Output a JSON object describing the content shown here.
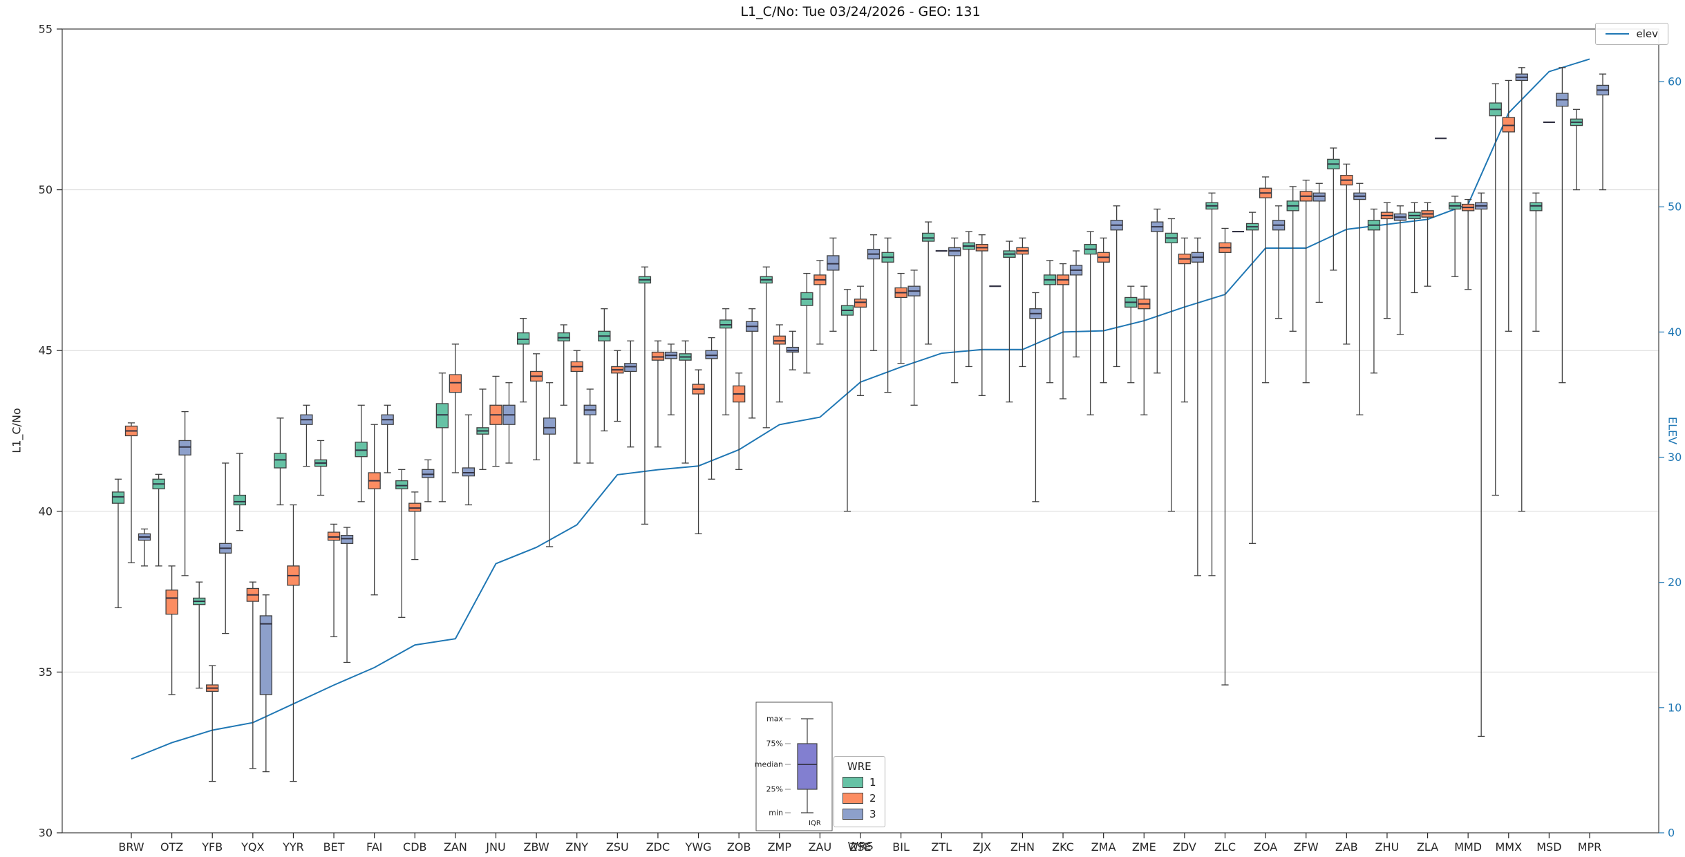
{
  "figure": {
    "title": "L1_C/No: Tue 03/24/2026 - GEO: 131",
    "xlabel": "WRS",
    "ylabel_left": "L1_C/No",
    "ylabel_right": "ELEV",
    "legend_elev_label": "elev",
    "legend_wre_title": "WRE",
    "anatomy_labels": [
      "max",
      "75%",
      "median",
      "25%",
      "min",
      "IQR"
    ]
  },
  "chart_data": {
    "type": "boxplot+line",
    "title": "L1_C/No: Tue 03/24/2026 - GEO: 131",
    "xlabel": "WRS",
    "ylabel": "L1_C/No",
    "ylabel_right": "ELEV",
    "grid": true,
    "y_left": {
      "min": 30,
      "max": 55,
      "ticks": [
        30,
        35,
        40,
        45,
        50,
        55
      ]
    },
    "y_right": {
      "min": 0,
      "max": 64.2,
      "ticks": [
        0,
        10,
        20,
        30,
        40,
        50,
        60
      ]
    },
    "groups": [
      {
        "name": "1",
        "color": "#66c2a5"
      },
      {
        "name": "2",
        "color": "#fc8d62"
      },
      {
        "name": "3",
        "color": "#8da0cb"
      }
    ],
    "box_value_order": [
      "whisker_low",
      "q1",
      "median",
      "q3",
      "whisker_high"
    ],
    "categories": [
      "BRW",
      "OTZ",
      "YFB",
      "YQX",
      "YYR",
      "BET",
      "FAI",
      "CDB",
      "ZAN",
      "JNU",
      "ZBW",
      "ZNY",
      "ZSU",
      "ZDC",
      "YWG",
      "ZOB",
      "ZMP",
      "ZAU",
      "ZSE",
      "BIL",
      "ZTL",
      "ZJX",
      "ZHN",
      "ZKC",
      "ZMA",
      "ZME",
      "ZDV",
      "ZLC",
      "ZOA",
      "ZFW",
      "ZAB",
      "ZHU",
      "ZLA",
      "MMD",
      "MMX",
      "MSD",
      "MPR"
    ],
    "stations": [
      {
        "name": "BRW",
        "elev": 5.9,
        "wre": [
          [
            37.0,
            40.25,
            40.45,
            40.6,
            41.0
          ],
          [
            38.4,
            42.35,
            42.5,
            42.65,
            42.75
          ],
          [
            38.3,
            39.1,
            39.2,
            39.3,
            39.45
          ]
        ]
      },
      {
        "name": "OTZ",
        "elev": 7.2,
        "wre": [
          [
            38.3,
            40.7,
            40.85,
            41.0,
            41.15
          ],
          [
            34.3,
            36.8,
            37.3,
            37.55,
            38.3
          ],
          [
            38.0,
            41.75,
            42.0,
            42.2,
            43.1
          ]
        ]
      },
      {
        "name": "YFB",
        "elev": 8.2,
        "wre": [
          [
            34.5,
            37.1,
            37.2,
            37.3,
            37.8
          ],
          [
            31.6,
            34.4,
            34.5,
            34.6,
            35.2
          ],
          [
            36.2,
            38.7,
            38.85,
            39.0,
            41.5
          ]
        ]
      },
      {
        "name": "YQX",
        "elev": 8.8,
        "wre": [
          [
            39.4,
            40.2,
            40.3,
            40.5,
            41.8
          ],
          [
            32.0,
            37.2,
            37.4,
            37.6,
            37.8
          ],
          [
            31.9,
            34.3,
            36.5,
            36.75,
            37.4
          ]
        ]
      },
      {
        "name": "YYR",
        "elev": 10.3,
        "wre": [
          [
            40.2,
            41.35,
            41.6,
            41.8,
            42.9
          ],
          [
            31.6,
            37.7,
            38.0,
            38.3,
            40.2
          ],
          [
            41.4,
            42.7,
            42.85,
            43.0,
            43.3
          ]
        ]
      },
      {
        "name": "BET",
        "elev": 11.8,
        "wre": [
          [
            40.5,
            41.4,
            41.5,
            41.6,
            42.2
          ],
          [
            36.1,
            39.1,
            39.2,
            39.35,
            39.6
          ],
          [
            35.3,
            39.0,
            39.15,
            39.25,
            39.5
          ]
        ]
      },
      {
        "name": "FAI",
        "elev": 13.2,
        "wre": [
          [
            40.3,
            41.7,
            41.9,
            42.15,
            43.3
          ],
          [
            37.4,
            40.7,
            40.95,
            41.2,
            42.7
          ],
          [
            41.2,
            42.7,
            42.85,
            43.0,
            43.3
          ]
        ]
      },
      {
        "name": "CDB",
        "elev": 15.0,
        "wre": [
          [
            36.7,
            40.7,
            40.8,
            40.95,
            41.3
          ],
          [
            38.5,
            40.0,
            40.1,
            40.25,
            40.6
          ],
          [
            40.3,
            41.05,
            41.15,
            41.3,
            41.6
          ]
        ]
      },
      {
        "name": "ZAN",
        "elev": 15.5,
        "wre": [
          [
            40.3,
            42.6,
            43.0,
            43.35,
            44.3
          ],
          [
            41.2,
            43.7,
            44.0,
            44.25,
            45.2
          ],
          [
            40.2,
            41.1,
            41.2,
            41.35,
            43.0
          ]
        ]
      },
      {
        "name": "JNU",
        "elev": 21.5,
        "wre": [
          [
            41.3,
            42.4,
            42.5,
            42.6,
            43.8
          ],
          [
            41.4,
            42.7,
            43.0,
            43.3,
            44.2
          ],
          [
            41.5,
            42.7,
            43.0,
            43.3,
            44.0
          ]
        ]
      },
      {
        "name": "ZBW",
        "elev": 22.8,
        "wre": [
          [
            43.4,
            45.2,
            45.35,
            45.55,
            46.0
          ],
          [
            41.6,
            44.05,
            44.2,
            44.35,
            44.9
          ],
          [
            38.9,
            42.4,
            42.6,
            42.9,
            44.0
          ]
        ]
      },
      {
        "name": "ZNY",
        "elev": 24.6,
        "wre": [
          [
            43.3,
            45.3,
            45.4,
            45.55,
            45.8
          ],
          [
            41.5,
            44.35,
            44.5,
            44.65,
            45.0
          ],
          [
            41.5,
            43.0,
            43.15,
            43.3,
            43.8
          ]
        ]
      },
      {
        "name": "ZSU",
        "elev": 28.6,
        "wre": [
          [
            42.5,
            45.3,
            45.45,
            45.6,
            46.3
          ],
          [
            42.8,
            44.3,
            44.4,
            44.5,
            45.0
          ],
          [
            42.0,
            44.35,
            44.5,
            44.6,
            45.3
          ]
        ]
      },
      {
        "name": "ZDC",
        "elev": 29.0,
        "wre": [
          [
            39.6,
            47.1,
            47.2,
            47.3,
            47.6
          ],
          [
            42.0,
            44.7,
            44.8,
            44.95,
            45.3
          ],
          [
            43.0,
            44.75,
            44.85,
            44.95,
            45.2
          ]
        ]
      },
      {
        "name": "YWG",
        "elev": 29.3,
        "wre": [
          [
            41.5,
            44.7,
            44.8,
            44.9,
            45.3
          ],
          [
            39.3,
            43.65,
            43.8,
            43.95,
            44.4
          ],
          [
            41.0,
            44.75,
            44.85,
            45.0,
            45.4
          ]
        ]
      },
      {
        "name": "ZOB",
        "elev": 30.6,
        "wre": [
          [
            43.0,
            45.7,
            45.8,
            45.95,
            46.3
          ],
          [
            41.3,
            43.4,
            43.65,
            43.9,
            44.3
          ],
          [
            42.9,
            45.6,
            45.75,
            45.9,
            46.3
          ]
        ]
      },
      {
        "name": "ZMP",
        "elev": 32.6,
        "wre": [
          [
            42.6,
            47.1,
            47.2,
            47.3,
            47.6
          ],
          [
            43.4,
            45.2,
            45.3,
            45.45,
            45.8
          ],
          [
            44.4,
            44.95,
            45.0,
            45.1,
            45.6
          ]
        ]
      },
      {
        "name": "ZAU",
        "elev": 33.2,
        "wre": [
          [
            44.3,
            46.4,
            46.6,
            46.8,
            47.4
          ],
          [
            45.2,
            47.05,
            47.2,
            47.35,
            47.8
          ],
          [
            45.6,
            47.5,
            47.7,
            47.95,
            48.5
          ]
        ]
      },
      {
        "name": "ZSE",
        "elev": 36.0,
        "wre": [
          [
            40.0,
            46.1,
            46.25,
            46.4,
            46.9
          ],
          [
            43.6,
            46.35,
            46.5,
            46.6,
            47.0
          ],
          [
            45.0,
            47.85,
            48.0,
            48.15,
            48.6
          ]
        ]
      },
      {
        "name": "BIL",
        "elev": 37.2,
        "wre": [
          [
            43.7,
            47.75,
            47.9,
            48.05,
            48.5
          ],
          [
            44.6,
            46.65,
            46.8,
            46.95,
            47.4
          ],
          [
            43.3,
            46.7,
            46.85,
            47.0,
            47.5
          ]
        ]
      },
      {
        "name": "ZTL",
        "elev": 38.3,
        "wre": [
          [
            45.2,
            48.4,
            48.5,
            48.65,
            49.0
          ],
          [
            48.1,
            48.1,
            48.1,
            48.1,
            48.1
          ],
          [
            44.0,
            47.95,
            48.1,
            48.2,
            48.5
          ]
        ]
      },
      {
        "name": "ZJX",
        "elev": 38.6,
        "wre": [
          [
            44.5,
            48.15,
            48.25,
            48.35,
            48.7
          ],
          [
            43.6,
            48.1,
            48.2,
            48.3,
            48.6
          ],
          [
            47.0,
            47.0,
            47.0,
            47.0,
            47.0
          ]
        ]
      },
      {
        "name": "ZHN",
        "elev": 38.6,
        "wre": [
          [
            43.4,
            47.9,
            48.0,
            48.1,
            48.4
          ],
          [
            44.5,
            48.0,
            48.1,
            48.2,
            48.5
          ],
          [
            40.3,
            46.0,
            46.15,
            46.3,
            46.8
          ]
        ]
      },
      {
        "name": "ZKC",
        "elev": 40.0,
        "wre": [
          [
            44.0,
            47.05,
            47.2,
            47.35,
            47.8
          ],
          [
            43.5,
            47.05,
            47.2,
            47.35,
            47.7
          ],
          [
            44.8,
            47.35,
            47.5,
            47.65,
            48.1
          ]
        ]
      },
      {
        "name": "ZMA",
        "elev": 40.1,
        "wre": [
          [
            43.0,
            48.0,
            48.15,
            48.3,
            48.7
          ],
          [
            44.0,
            47.75,
            47.9,
            48.05,
            48.5
          ],
          [
            44.5,
            48.75,
            48.9,
            49.05,
            49.5
          ]
        ]
      },
      {
        "name": "ZME",
        "elev": 40.9,
        "wre": [
          [
            44.0,
            46.35,
            46.5,
            46.65,
            47.0
          ],
          [
            43.0,
            46.3,
            46.45,
            46.6,
            47.0
          ],
          [
            44.3,
            48.7,
            48.85,
            49.0,
            49.4
          ]
        ]
      },
      {
        "name": "ZDV",
        "elev": 42.0,
        "wre": [
          [
            40.0,
            48.35,
            48.5,
            48.65,
            49.1
          ],
          [
            43.4,
            47.7,
            47.85,
            48.0,
            48.5
          ],
          [
            38.0,
            47.75,
            47.9,
            48.05,
            48.5
          ]
        ]
      },
      {
        "name": "ZLC",
        "elev": 43.0,
        "wre": [
          [
            38.0,
            49.4,
            49.5,
            49.6,
            49.9
          ],
          [
            34.6,
            48.05,
            48.2,
            48.35,
            48.8
          ],
          [
            48.7,
            48.7,
            48.7,
            48.7,
            48.7
          ]
        ]
      },
      {
        "name": "ZOA",
        "elev": 46.7,
        "wre": [
          [
            39.0,
            48.75,
            48.85,
            48.95,
            49.3
          ],
          [
            44.0,
            49.75,
            49.9,
            50.05,
            50.4
          ],
          [
            46.0,
            48.75,
            48.9,
            49.05,
            49.5
          ]
        ]
      },
      {
        "name": "ZFW",
        "elev": 46.7,
        "wre": [
          [
            45.6,
            49.35,
            49.5,
            49.65,
            50.1
          ],
          [
            44.0,
            49.65,
            49.8,
            49.95,
            50.3
          ],
          [
            46.5,
            49.65,
            49.8,
            49.9,
            50.2
          ]
        ]
      },
      {
        "name": "ZAB",
        "elev": 48.2,
        "wre": [
          [
            47.5,
            50.65,
            50.8,
            50.95,
            51.3
          ],
          [
            45.2,
            50.15,
            50.3,
            50.45,
            50.8
          ],
          [
            43.0,
            49.7,
            49.8,
            49.9,
            50.2
          ]
        ]
      },
      {
        "name": "ZHU",
        "elev": 48.6,
        "wre": [
          [
            44.3,
            48.75,
            48.9,
            49.05,
            49.4
          ],
          [
            46.0,
            49.1,
            49.2,
            49.3,
            49.6
          ],
          [
            45.5,
            49.05,
            49.15,
            49.25,
            49.5
          ]
        ]
      },
      {
        "name": "ZLA",
        "elev": 49.0,
        "wre": [
          [
            46.8,
            49.1,
            49.2,
            49.3,
            49.6
          ],
          [
            47.0,
            49.15,
            49.25,
            49.35,
            49.6
          ],
          [
            51.6,
            51.6,
            51.6,
            51.6,
            51.6
          ]
        ]
      },
      {
        "name": "MMD",
        "elev": 50.2,
        "wre": [
          [
            47.3,
            49.4,
            49.5,
            49.6,
            49.8
          ],
          [
            46.9,
            49.35,
            49.45,
            49.55,
            49.7
          ],
          [
            33.0,
            49.4,
            49.5,
            49.6,
            49.9
          ]
        ]
      },
      {
        "name": "MMX",
        "elev": 57.5,
        "wre": [
          [
            40.5,
            52.3,
            52.5,
            52.7,
            53.3
          ],
          [
            45.6,
            51.8,
            52.0,
            52.25,
            53.4
          ],
          [
            40.0,
            53.4,
            53.5,
            53.6,
            53.8
          ]
        ]
      },
      {
        "name": "MSD",
        "elev": 60.8,
        "wre": [
          [
            45.6,
            49.35,
            49.5,
            49.6,
            49.9
          ],
          [
            52.1,
            52.1,
            52.1,
            52.1,
            52.1
          ],
          [
            44.0,
            52.6,
            52.8,
            53.0,
            53.8
          ]
        ]
      },
      {
        "name": "MPR",
        "elev": 61.8,
        "wre": [
          [
            50.0,
            52.0,
            52.1,
            52.2,
            52.5
          ],
          null,
          [
            50.0,
            52.95,
            53.1,
            53.25,
            53.6
          ]
        ]
      }
    ],
    "elev_series": {
      "name": "elev",
      "color": "#1f77b4"
    },
    "legend_position": {
      "wre": "lower-center",
      "elev": "upper-right"
    },
    "colors": {
      "grid": "#d9d9d9",
      "spine": "#3c3c3c",
      "box_edge": "#3f3f3f",
      "median": "#333344",
      "tick_left": "#262626",
      "tick_right": "#1f77b4",
      "anatomy_box_fill": "#827fd0"
    }
  }
}
